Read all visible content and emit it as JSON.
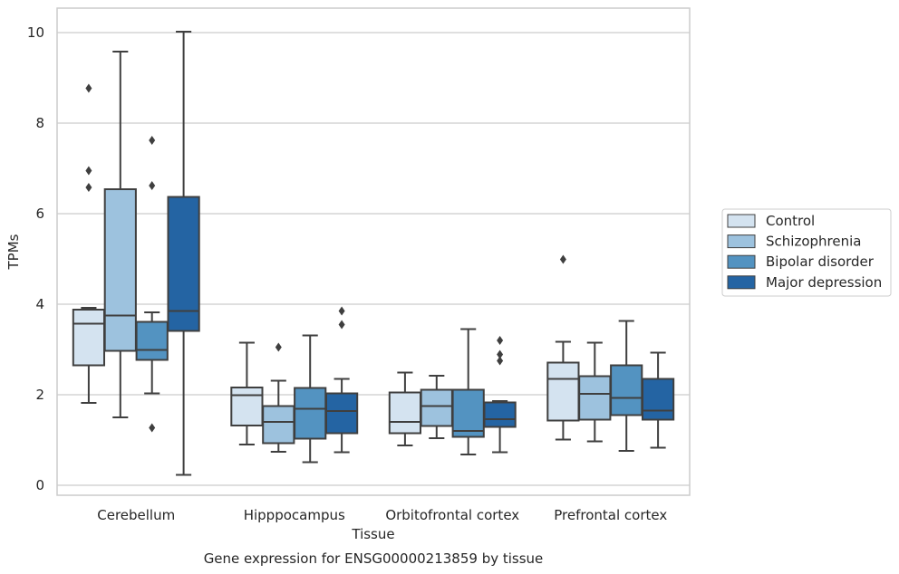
{
  "chart_data": {
    "type": "box",
    "caption": "Gene expression for ENSG00000213859 by tissue",
    "xlabel": "Tissue",
    "ylabel": "TPMs",
    "ylim": [
      -0.2,
      10.5
    ],
    "yticks": [
      0,
      2,
      4,
      6,
      8,
      10
    ],
    "grid": "horizontal",
    "legend_placement": "right",
    "categories": [
      "Cerebellum",
      "Hipppocampus",
      "Orbitofrontal cortex",
      "Prefrontal cortex"
    ],
    "series": [
      {
        "name": "Control",
        "color": "#d4e3f0",
        "boxes": [
          {
            "whislo": 1.82,
            "q1": 2.65,
            "med": 3.57,
            "q3": 3.88,
            "whishi": 3.92,
            "fliers": [
              6.58,
              6.95,
              8.77
            ]
          },
          {
            "whislo": 0.9,
            "q1": 1.32,
            "med": 1.99,
            "q3": 2.16,
            "whishi": 3.15,
            "fliers": []
          },
          {
            "whislo": 0.88,
            "q1": 1.15,
            "med": 1.4,
            "q3": 2.05,
            "whishi": 2.49,
            "fliers": []
          },
          {
            "whislo": 1.01,
            "q1": 1.43,
            "med": 2.35,
            "q3": 2.71,
            "whishi": 3.17,
            "fliers": [
              4.99
            ]
          }
        ]
      },
      {
        "name": "Schizophrenia",
        "color": "#9dc2de",
        "boxes": [
          {
            "whislo": 1.5,
            "q1": 2.97,
            "med": 3.75,
            "q3": 6.54,
            "whishi": 9.58,
            "fliers": []
          },
          {
            "whislo": 0.74,
            "q1": 0.93,
            "med": 1.4,
            "q3": 1.75,
            "whishi": 2.31,
            "fliers": [
              3.05
            ]
          },
          {
            "whislo": 1.04,
            "q1": 1.31,
            "med": 1.75,
            "q3": 2.11,
            "whishi": 2.42,
            "fliers": []
          },
          {
            "whislo": 0.97,
            "q1": 1.45,
            "med": 2.02,
            "q3": 2.41,
            "whishi": 3.15,
            "fliers": []
          }
        ]
      },
      {
        "name": "Bipolar disorder",
        "color": "#5393c1",
        "boxes": [
          {
            "whislo": 2.03,
            "q1": 2.77,
            "med": 2.99,
            "q3": 3.61,
            "whishi": 3.82,
            "fliers": [
              1.27,
              6.62,
              7.62
            ]
          },
          {
            "whislo": 0.51,
            "q1": 1.03,
            "med": 1.69,
            "q3": 2.15,
            "whishi": 3.31,
            "fliers": []
          },
          {
            "whislo": 0.68,
            "q1": 1.07,
            "med": 1.2,
            "q3": 2.11,
            "whishi": 3.45,
            "fliers": []
          },
          {
            "whislo": 0.76,
            "q1": 1.55,
            "med": 1.93,
            "q3": 2.65,
            "whishi": 3.63,
            "fliers": []
          }
        ]
      },
      {
        "name": "Major depression",
        "color": "#2464a3",
        "boxes": [
          {
            "whislo": 0.23,
            "q1": 3.41,
            "med": 3.85,
            "q3": 6.37,
            "whishi": 10.02,
            "fliers": []
          },
          {
            "whislo": 0.73,
            "q1": 1.15,
            "med": 1.64,
            "q3": 2.03,
            "whishi": 2.35,
            "fliers": [
              3.55,
              3.85
            ]
          },
          {
            "whislo": 0.73,
            "q1": 1.29,
            "med": 1.46,
            "q3": 1.83,
            "whishi": 1.86,
            "fliers": [
              2.75,
              2.89,
              3.2
            ]
          },
          {
            "whislo": 0.83,
            "q1": 1.45,
            "med": 1.65,
            "q3": 2.35,
            "whishi": 2.93,
            "fliers": []
          }
        ]
      }
    ]
  }
}
